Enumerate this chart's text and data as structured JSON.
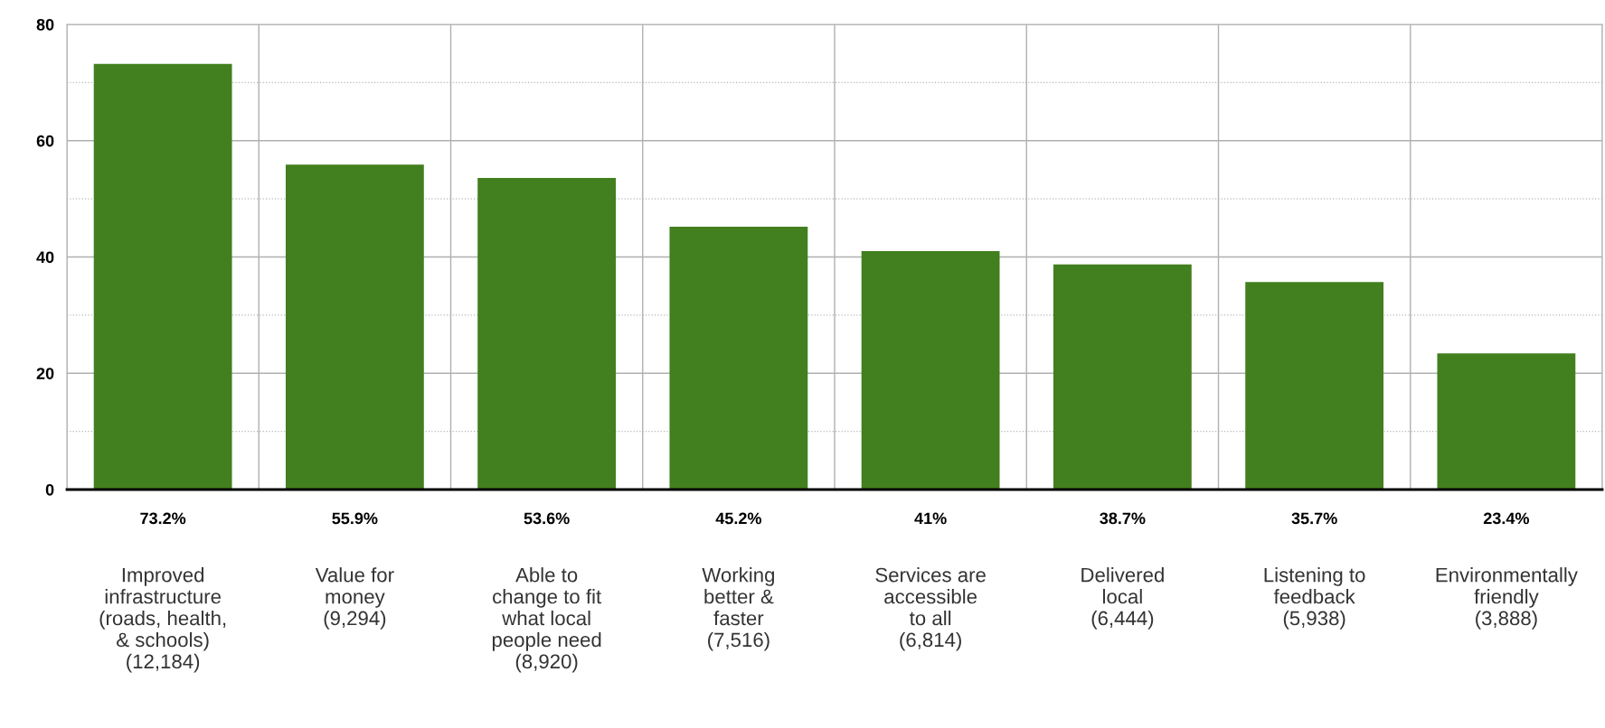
{
  "chart_data": {
    "type": "bar",
    "categories": [
      "Improved\ninfrastructure\n(roads, health,\n& schools)\n(12,184)",
      "Value for\nmoney\n(9,294)",
      "Able to\nchange to fit\nwhat local\npeople need\n(8,920)",
      "Working\nbetter &\nfaster\n(7,516)",
      "Services are\naccessible\nto all\n(6,814)",
      "Delivered\nlocal\n(6,444)",
      "Listening to\nfeedback\n(5,938)",
      "Environmentally\nfriendly\n(3,888)"
    ],
    "values": [
      73.2,
      55.9,
      53.6,
      45.2,
      41,
      38.7,
      35.7,
      23.4
    ],
    "value_labels": [
      "73.2%",
      "55.9%",
      "53.6%",
      "45.2%",
      "41%",
      "38.7%",
      "35.7%",
      "23.4%"
    ],
    "color": "#427f1e",
    "ylim": [
      0,
      80
    ],
    "yticks": [
      0,
      {
        "value": 10,
        "label": null
      },
      20,
      {
        "value": 30,
        "label": null
      },
      40,
      {
        "value": 50,
        "label": null
      },
      60,
      {
        "value": 70,
        "label": null
      },
      80
    ],
    "grid": true
  }
}
